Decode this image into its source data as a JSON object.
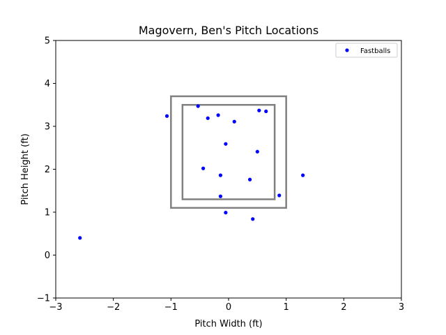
{
  "chart_data": {
    "type": "scatter",
    "title": "Magovern, Ben's Pitch Locations",
    "xlabel": "Pitch Width (ft)",
    "ylabel": "Pitch Height (ft)",
    "xlim": [
      -3,
      3
    ],
    "ylim": [
      -1,
      5
    ],
    "xticks": [
      -3,
      -2,
      -1,
      0,
      1,
      2,
      3
    ],
    "yticks": [
      -1,
      0,
      1,
      2,
      3,
      4,
      5
    ],
    "grid": false,
    "legend_position": "top-right",
    "strike_zone_outer": {
      "x": [
        -1.0,
        1.0
      ],
      "y": [
        1.1,
        3.7
      ]
    },
    "strike_zone_inner": {
      "x": [
        -0.8,
        0.8
      ],
      "y": [
        1.3,
        3.5
      ]
    },
    "zone_color": "#808080",
    "series": [
      {
        "name": "Fastballs",
        "color": "#0000ff",
        "points": [
          {
            "x": -2.58,
            "y": 0.4
          },
          {
            "x": -1.07,
            "y": 3.24
          },
          {
            "x": -0.53,
            "y": 3.47
          },
          {
            "x": -0.36,
            "y": 3.19
          },
          {
            "x": -0.18,
            "y": 3.26
          },
          {
            "x": 0.1,
            "y": 3.11
          },
          {
            "x": 0.53,
            "y": 3.37
          },
          {
            "x": 0.65,
            "y": 3.35
          },
          {
            "x": -0.05,
            "y": 2.59
          },
          {
            "x": 0.5,
            "y": 2.41
          },
          {
            "x": -0.44,
            "y": 2.02
          },
          {
            "x": -0.14,
            "y": 1.86
          },
          {
            "x": 0.37,
            "y": 1.76
          },
          {
            "x": 1.29,
            "y": 1.86
          },
          {
            "x": -0.14,
            "y": 1.37
          },
          {
            "x": 0.88,
            "y": 1.39
          },
          {
            "x": -0.05,
            "y": 0.99
          },
          {
            "x": 0.42,
            "y": 0.84
          }
        ]
      }
    ]
  }
}
